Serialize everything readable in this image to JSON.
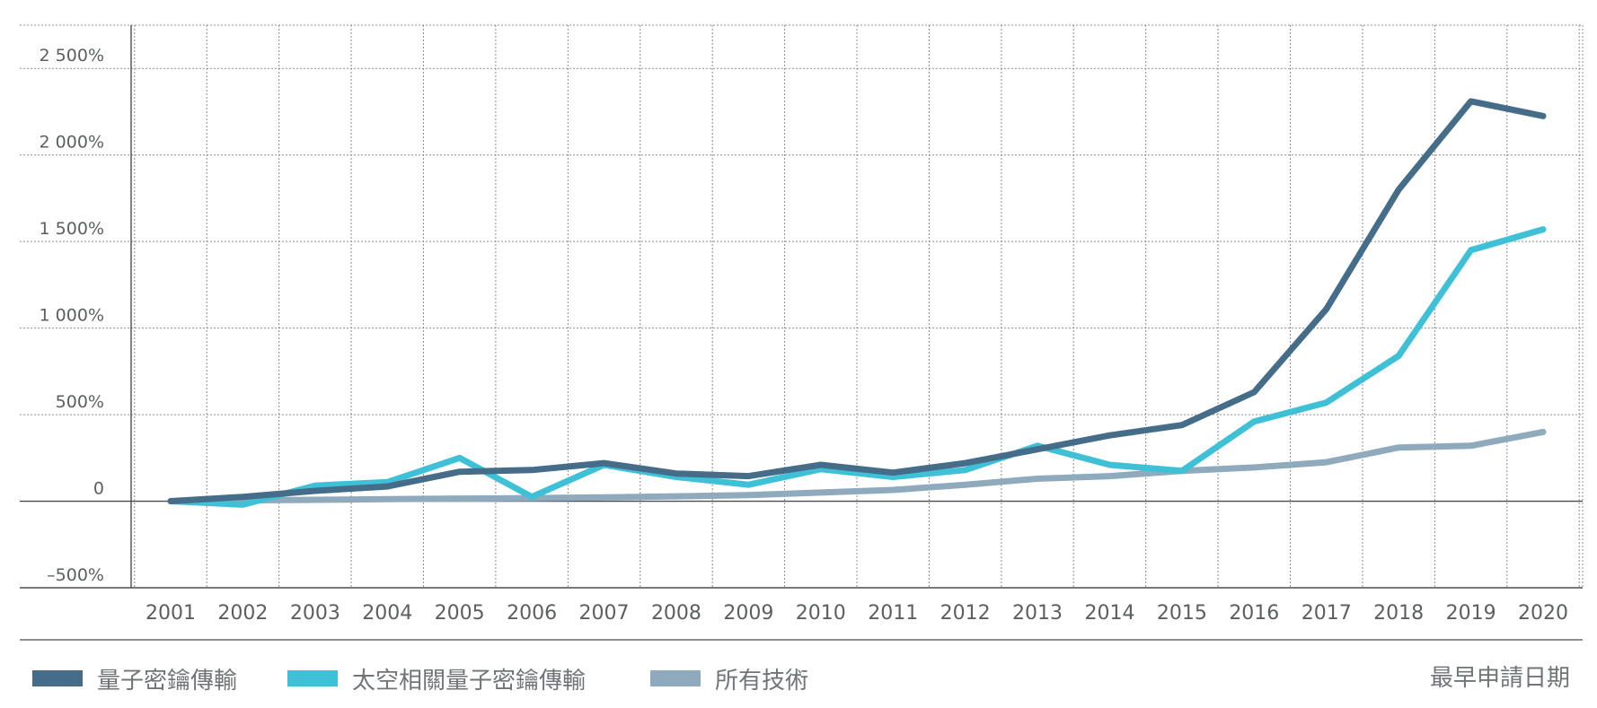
{
  "chart_data": {
    "type": "line",
    "x": [
      "2001",
      "2002",
      "2003",
      "2004",
      "2005",
      "2006",
      "2007",
      "2008",
      "2009",
      "2010",
      "2011",
      "2012",
      "2013",
      "2014",
      "2015",
      "2016",
      "2017",
      "2018",
      "2019",
      "2020"
    ],
    "y_ticks": [
      {
        "value": 2500,
        "label": "2 500%"
      },
      {
        "value": 2000,
        "label": "2 000%"
      },
      {
        "value": 1500,
        "label": "1 500%"
      },
      {
        "value": 1000,
        "label": "1 000%"
      },
      {
        "value": 500,
        "label": "500%"
      },
      {
        "value": 0,
        "label": "0"
      },
      {
        "value": -500,
        "label": "–500%"
      }
    ],
    "ylim": [
      -500,
      2750
    ],
    "grid": true,
    "legend_position": "bottom-left",
    "xlabel": "最早申請日期",
    "series": [
      {
        "name": "量子密鑰傳輸",
        "color": "#456d89",
        "values": [
          0,
          25,
          60,
          85,
          170,
          180,
          220,
          160,
          145,
          210,
          165,
          220,
          300,
          380,
          440,
          630,
          1110,
          1800,
          2310,
          2225
        ]
      },
      {
        "name": "太空相關量子密鑰傳輸",
        "color": "#3ec1d6",
        "values": [
          0,
          -20,
          90,
          110,
          250,
          25,
          210,
          140,
          95,
          185,
          140,
          180,
          320,
          210,
          175,
          460,
          570,
          840,
          1450,
          1570
        ]
      },
      {
        "name": "所有技術",
        "color": "#8faabc",
        "values": [
          0,
          5,
          8,
          12,
          15,
          18,
          22,
          28,
          35,
          50,
          65,
          95,
          130,
          145,
          175,
          195,
          225,
          310,
          320,
          400
        ]
      }
    ]
  }
}
